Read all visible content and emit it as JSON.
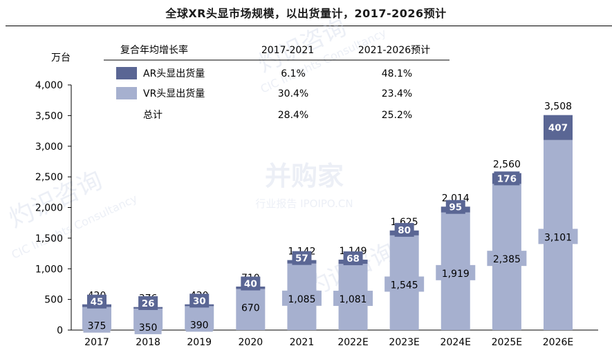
{
  "title": "全球XR头显市场规模，以出货量计，2017-2026预计",
  "watermarks": {
    "brand": "并购家",
    "sub": "行业报告 IPOIPO.CN",
    "cic_cn": "灼识咨询",
    "cic_en": "CIC Insights Consultancy"
  },
  "colors": {
    "ar": "#5a6694",
    "vr": "#a6b0cf",
    "axis": "#000000"
  },
  "cagr_table": {
    "header": "复合年均增长率",
    "period1": "2017-2021",
    "period2": "2021-2026预计",
    "rows": [
      {
        "key": "ar",
        "label": "AR头显出货量",
        "v1": "6.1%",
        "v2": "48.1%"
      },
      {
        "key": "vr",
        "label": "VR头显出货量",
        "v1": "30.4%",
        "v2": "23.4%"
      },
      {
        "key": "total",
        "label": "总计",
        "v1": "28.4%",
        "v2": "25.2%"
      }
    ]
  },
  "chart_data": {
    "type": "bar",
    "stacked": true,
    "unit": "万台",
    "categories": [
      "2017",
      "2018",
      "2019",
      "2020",
      "2021",
      "2022E",
      "2023E",
      "2024E",
      "2025E",
      "2026E"
    ],
    "series": [
      {
        "name": "VR头显出货量",
        "values": [
          375,
          350,
          390,
          670,
          1085,
          1081,
          1545,
          1919,
          2385,
          3101
        ]
      },
      {
        "name": "AR头显出货量",
        "values": [
          45,
          26,
          30,
          40,
          57,
          68,
          80,
          95,
          176,
          407
        ]
      }
    ],
    "totals": [
      "420",
      "376",
      "420",
      "710",
      "1,142",
      "1,149",
      "1,625",
      "2,014",
      "2,560",
      "3,508"
    ],
    "ylim": [
      0,
      4000
    ],
    "yticks": [
      "0",
      "500",
      "1,000",
      "1,500",
      "2,000",
      "2,500",
      "3,000",
      "3,500",
      "4,000"
    ]
  }
}
